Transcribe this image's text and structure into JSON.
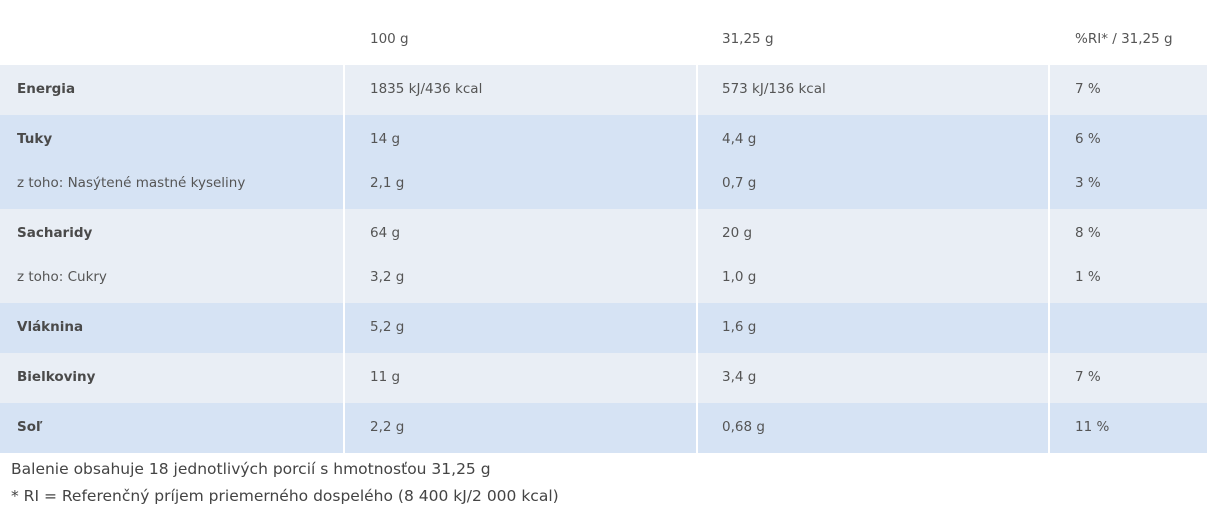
{
  "table": {
    "columns": [
      "100 g",
      "31,25 g",
      "%RI* / 31,25 g"
    ],
    "groups": [
      {
        "rows": [
          {
            "label": "Energia",
            "cells": [
              "1835 kJ/436 kcal",
              "573 kJ/136 kcal",
              "7 %"
            ]
          }
        ]
      },
      {
        "rows": [
          {
            "label": "Tuky",
            "cells": [
              "14 g",
              "4,4 g",
              "6 %"
            ]
          },
          {
            "label": "z toho: Nasýtené mastné kyseliny",
            "cells": [
              "2,1 g",
              "0,7 g",
              "3 %"
            ]
          }
        ]
      },
      {
        "rows": [
          {
            "label": "Sacharidy",
            "cells": [
              "64 g",
              "20 g",
              "8 %"
            ]
          },
          {
            "label": "z toho: Cukry",
            "cells": [
              "3,2 g",
              "1,0 g",
              "1 %"
            ]
          }
        ]
      },
      {
        "rows": [
          {
            "label": "Vláknina",
            "cells": [
              "5,2 g",
              "1,6 g"
            ]
          }
        ]
      },
      {
        "rows": [
          {
            "label": "Bielkoviny",
            "cells": [
              "11 g",
              "3,4 g",
              "7 %"
            ]
          }
        ]
      },
      {
        "rows": [
          {
            "label": "Soľ",
            "cells": [
              "2,2 g",
              "0,68 g",
              "11 %"
            ]
          }
        ]
      }
    ]
  },
  "notes": [
    "Balenie obsahuje 18 jednotlivých porcií s hmotnosťou 31,25 g",
    "* RI = Referenčný príjem priemerného dospelého (8 400 kJ/2 000 kcal)"
  ]
}
